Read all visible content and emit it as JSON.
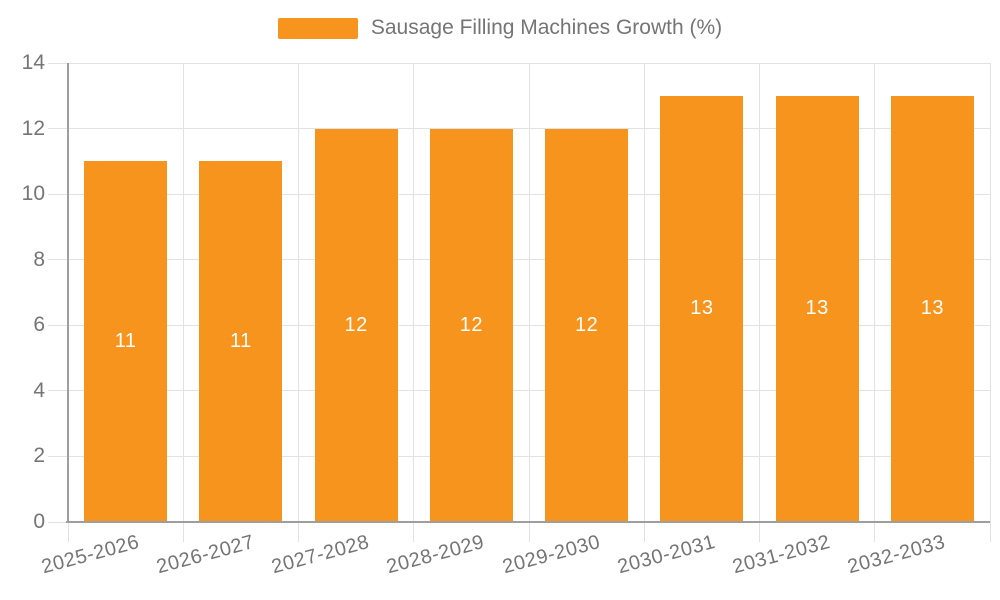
{
  "chart_data": {
    "type": "bar",
    "title": "Sausage Filling Machines Growth (%)",
    "legend": {
      "label": "Sausage Filling Machines Growth (%)",
      "position": "top-center"
    },
    "categories": [
      "2025-2026",
      "2026-2027",
      "2027-2028",
      "2028-2029",
      "2029-2030",
      "2030-2031",
      "2031-2032",
      "2032-2033"
    ],
    "values": [
      11,
      11,
      12,
      12,
      12,
      13,
      13,
      13
    ],
    "value_label_position": "inside-center",
    "xlabel": "",
    "ylabel": "",
    "ylim": [
      0,
      14
    ],
    "yticks": [
      0,
      2,
      4,
      6,
      8,
      10,
      12,
      14
    ],
    "grid": true,
    "x_label_rotation_deg": -15
  },
  "colors": {
    "bar": "#F7941E",
    "grid": "#E2E2E2",
    "axis": "#9E9E9E",
    "tick_label": "#757575",
    "legend_text": "#757575",
    "value_label": "#FFFFFF",
    "background": "#FFFFFF"
  }
}
